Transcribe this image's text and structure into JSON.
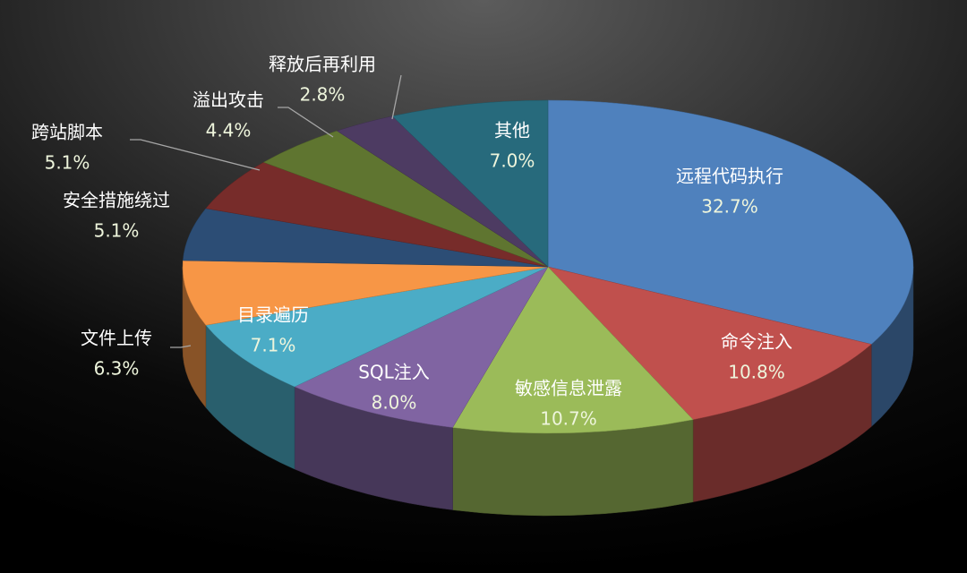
{
  "chart_data": {
    "type": "pie",
    "categories": [
      "远程代码执行",
      "命令注入",
      "敏感信息泄露",
      "SQL注入",
      "目录遍历",
      "文件上传",
      "安全措施绕过",
      "跨站脚本",
      "溢出攻击",
      "释放后再利用",
      "其他"
    ],
    "values": [
      32.7,
      10.8,
      10.7,
      8.0,
      7.1,
      6.3,
      5.1,
      5.1,
      4.4,
      2.8,
      7.0
    ],
    "value_labels": [
      "32.7%",
      "10.8%",
      "10.7%",
      "8.0%",
      "7.1%",
      "6.3%",
      "5.1%",
      "5.1%",
      "4.4%",
      "2.8%",
      "7.0%"
    ],
    "colors": [
      "#4f81bd",
      "#c0504d",
      "#9bbb59",
      "#8064a2",
      "#4bacc6",
      "#f79646",
      "#2c4d75",
      "#772c2a",
      "#5f7530",
      "#4d3b62",
      "#276a7c"
    ]
  }
}
